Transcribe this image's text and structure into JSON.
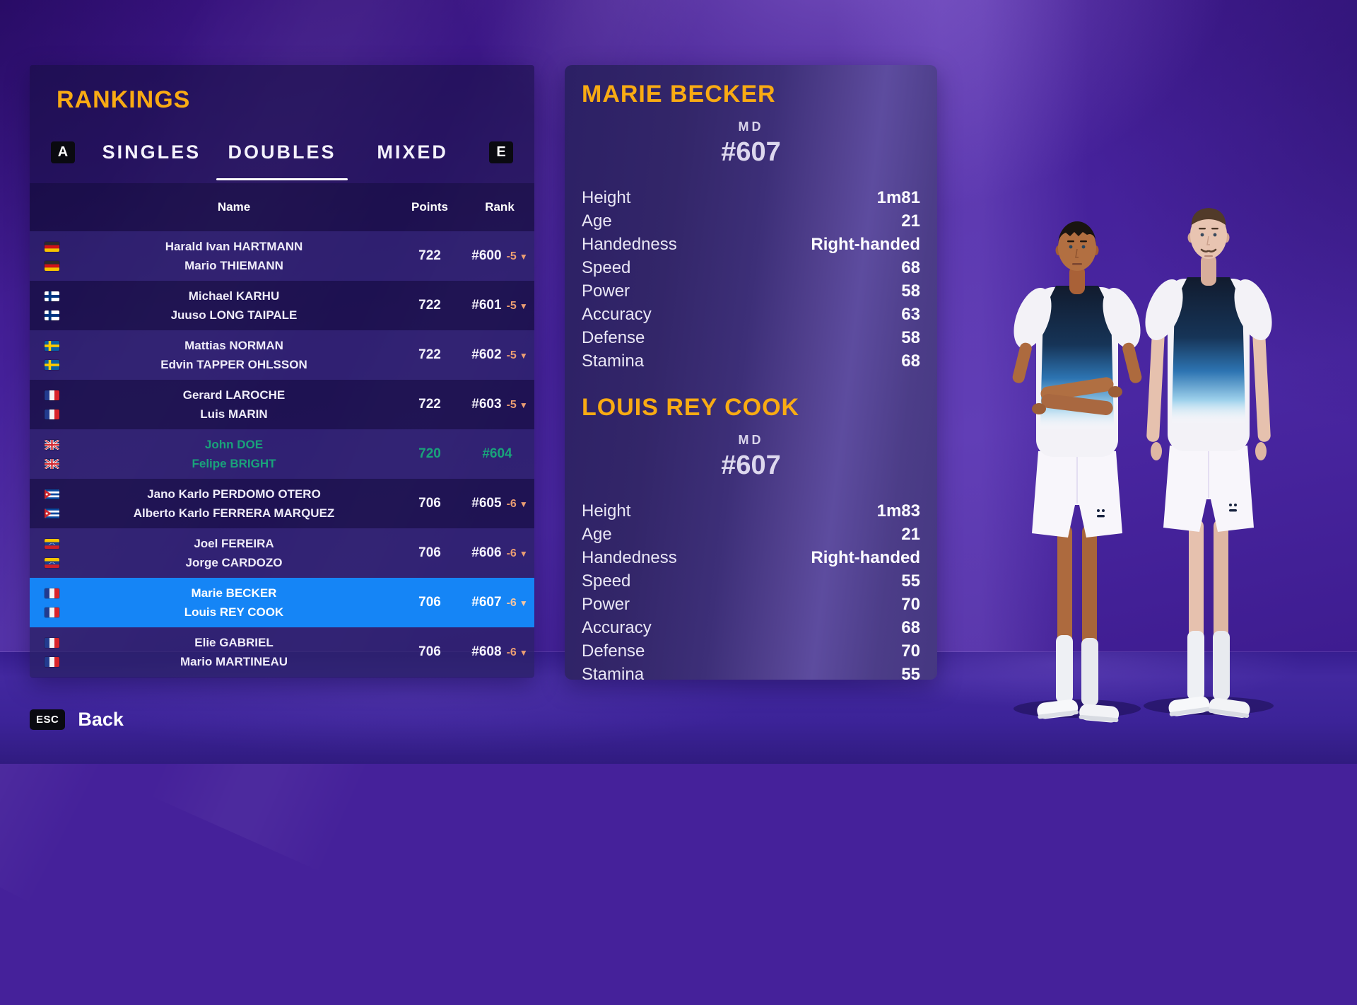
{
  "rankings": {
    "title": "RANKINGS",
    "shortcut_left": "A",
    "shortcut_right": "E",
    "tabs": [
      {
        "label": "SINGLES"
      },
      {
        "label": "DOUBLES"
      },
      {
        "label": "MIXED"
      }
    ],
    "active_tab": "DOUBLES",
    "columns": {
      "name": "Name",
      "points": "Points",
      "rank": "Rank"
    },
    "rows": [
      {
        "country": "de",
        "players": [
          "Harald Ivan HARTMANN",
          "Mario THIEMANN"
        ],
        "points": "722",
        "rank": "#600",
        "change": "-5",
        "trend": "down",
        "state": "default"
      },
      {
        "country": "fi",
        "players": [
          "Michael KARHU",
          "Juuso LONG TAIPALE"
        ],
        "points": "722",
        "rank": "#601",
        "change": "-5",
        "trend": "down",
        "state": "default"
      },
      {
        "country": "se",
        "players": [
          "Mattias NORMAN",
          "Edvin TAPPER OHLSSON"
        ],
        "points": "722",
        "rank": "#602",
        "change": "-5",
        "trend": "down",
        "state": "default"
      },
      {
        "country": "fr",
        "players": [
          "Gerard LAROCHE",
          "Luis MARIN"
        ],
        "points": "722",
        "rank": "#603",
        "change": "-5",
        "trend": "down",
        "state": "default"
      },
      {
        "country": "gb",
        "players": [
          "John DOE",
          "Felipe BRIGHT"
        ],
        "points": "720",
        "rank": "#604",
        "change": "",
        "trend": "none",
        "state": "self"
      },
      {
        "country": "cu",
        "players": [
          "Jano Karlo PERDOMO OTERO",
          "Alberto Karlo FERRERA MARQUEZ"
        ],
        "points": "706",
        "rank": "#605",
        "change": "-6",
        "trend": "down",
        "state": "default"
      },
      {
        "country": "ve",
        "players": [
          "Joel FEREIRA",
          "Jorge CARDOZO"
        ],
        "points": "706",
        "rank": "#606",
        "change": "-6",
        "trend": "down",
        "state": "default"
      },
      {
        "country": "fr",
        "players": [
          "Marie BECKER",
          "Louis REY COOK"
        ],
        "points": "706",
        "rank": "#607",
        "change": "-6",
        "trend": "down",
        "state": "selected"
      },
      {
        "country": "fr",
        "players": [
          "Elie GABRIEL",
          "Mario MARTINEAU"
        ],
        "points": "706",
        "rank": "#608",
        "change": "-6",
        "trend": "down",
        "state": "default"
      }
    ]
  },
  "details": {
    "players": [
      {
        "name": "MARIE BECKER",
        "draw": "MD",
        "rank": "#607",
        "stats": [
          [
            "Height",
            "1m81"
          ],
          [
            "Age",
            "21"
          ],
          [
            "Handedness",
            "Right-handed"
          ],
          [
            "Speed",
            "68"
          ],
          [
            "Power",
            "58"
          ],
          [
            "Accuracy",
            "63"
          ],
          [
            "Defense",
            "58"
          ],
          [
            "Stamina",
            "68"
          ]
        ]
      },
      {
        "name": "LOUIS REY COOK",
        "draw": "MD",
        "rank": "#607",
        "stats": [
          [
            "Height",
            "1m83"
          ],
          [
            "Age",
            "21"
          ],
          [
            "Handedness",
            "Right-handed"
          ],
          [
            "Speed",
            "55"
          ],
          [
            "Power",
            "70"
          ],
          [
            "Accuracy",
            "68"
          ],
          [
            "Defense",
            "70"
          ],
          [
            "Stamina",
            "55"
          ]
        ]
      }
    ]
  },
  "footer": {
    "key": "ESC",
    "label": "Back"
  },
  "colors": {
    "accent_gold": "#f9ab13",
    "selected_row": "#1585f6",
    "self_green": "#19a37a",
    "rank_drop": "#eb9e72",
    "background_purple": "#45219a"
  }
}
